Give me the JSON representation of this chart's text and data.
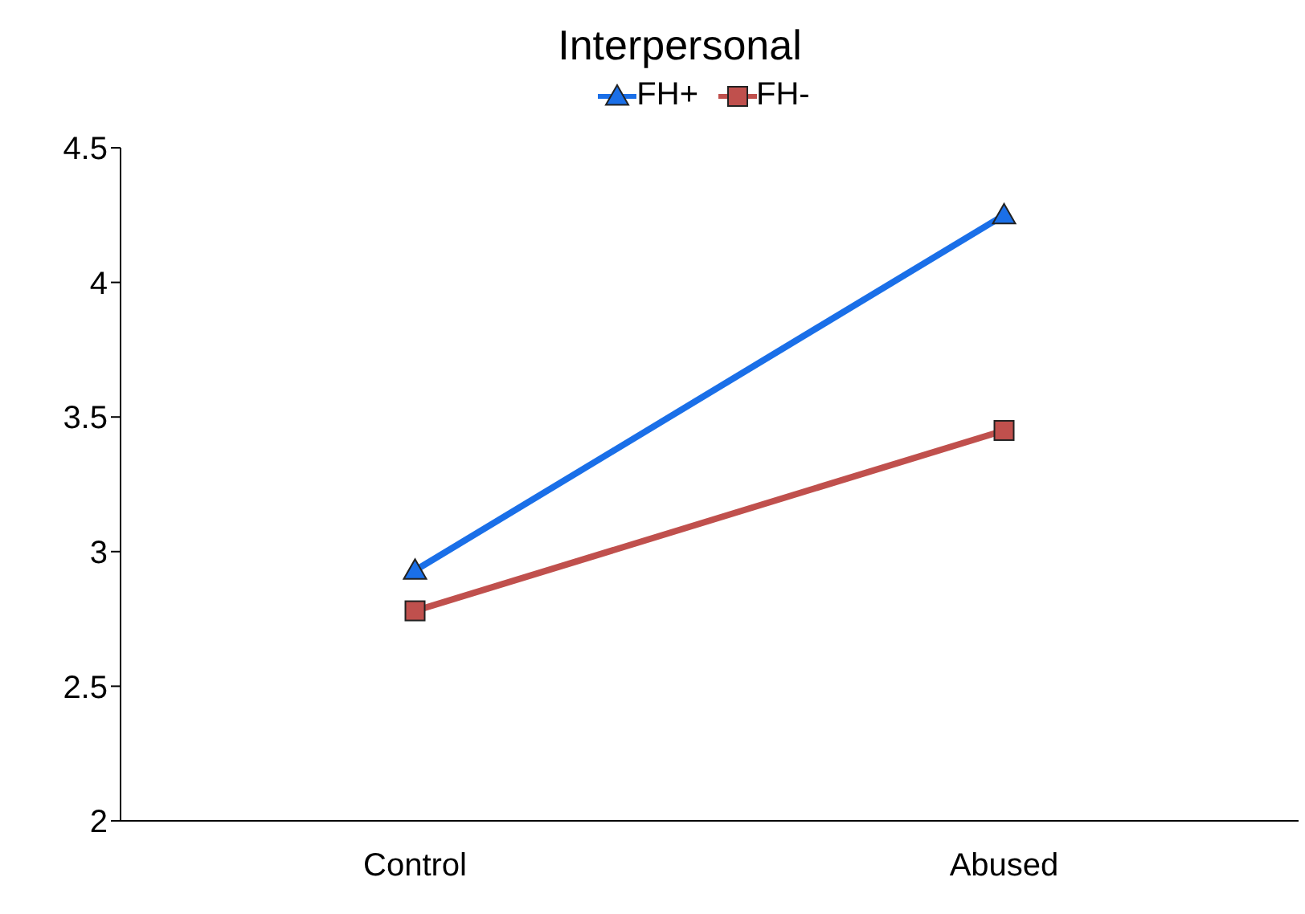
{
  "chart_data": {
    "type": "line",
    "title": "Interpersonal",
    "categories": [
      "Control",
      "Abused"
    ],
    "series": [
      {
        "name": "FH+",
        "color": "#1a6fe8",
        "values": [
          2.93,
          4.25
        ],
        "marker": "triangle"
      },
      {
        "name": "FH-",
        "color": "#c0504d",
        "values": [
          2.78,
          3.45
        ],
        "marker": "square"
      }
    ],
    "ylim": [
      2,
      4.5
    ],
    "yticks": [
      2,
      2.5,
      3,
      3.5,
      4,
      4.5
    ],
    "grid": false,
    "legend": "top",
    "line_style": "solid"
  }
}
